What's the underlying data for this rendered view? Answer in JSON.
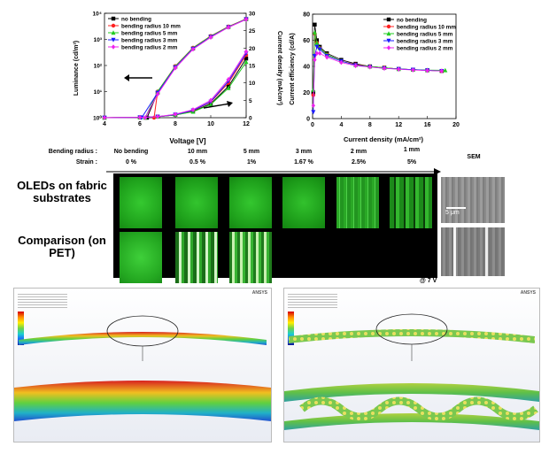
{
  "chart_data": [
    {
      "type": "line",
      "xlabel": "Voltage [V]",
      "ylabel": "Luminance (cd/m²)",
      "y2label": "Current density (mA/cm²)",
      "xlim": [
        4,
        12
      ],
      "xticks": [
        "4",
        "6",
        "8",
        "10",
        "12"
      ],
      "ylim_log": [
        1,
        10000
      ],
      "yticks": [
        "10⁰",
        "10¹",
        "10²",
        "10³",
        "10⁴"
      ],
      "y2lim": [
        0,
        30
      ],
      "y2ticks": [
        "0",
        "5",
        "10",
        "15",
        "20",
        "25",
        "30"
      ],
      "legend_position": "top-left",
      "series": [
        {
          "name": "no bending",
          "color": "#000000",
          "marker": "square",
          "luminance": [
            [
              6.4,
              1
            ],
            [
              7,
              9
            ],
            [
              8,
              90
            ],
            [
              9,
              450
            ],
            [
              10,
              1300
            ],
            [
              11,
              3000
            ],
            [
              12,
              6000
            ]
          ],
          "current_density": [
            [
              4,
              0
            ],
            [
              6,
              0.1
            ],
            [
              7,
              0.3
            ],
            [
              8,
              0.8
            ],
            [
              9,
              1.8
            ],
            [
              10,
              4
            ],
            [
              11,
              9
            ],
            [
              12,
              17
            ]
          ]
        },
        {
          "name": "bending radius 10 mm",
          "color": "#ff2020",
          "marker": "circle",
          "luminance": [
            [
              6.8,
              1
            ],
            [
              7,
              10
            ],
            [
              8,
              95
            ],
            [
              9,
              480
            ],
            [
              10,
              1350
            ],
            [
              11,
              3100
            ],
            [
              12,
              6100
            ]
          ],
          "current_density": [
            [
              4,
              0
            ],
            [
              6,
              0.1
            ],
            [
              7,
              0.3
            ],
            [
              8,
              0.8
            ],
            [
              9,
              2
            ],
            [
              10,
              4.5
            ],
            [
              11,
              10
            ],
            [
              12,
              18
            ]
          ]
        },
        {
          "name": "bending radius 5 mm",
          "color": "#22cc22",
          "marker": "triangle-up",
          "luminance": [
            [
              6.3,
              1
            ],
            [
              7,
              10
            ],
            [
              8,
              92
            ],
            [
              9,
              470
            ],
            [
              10,
              1320
            ],
            [
              11,
              3050
            ],
            [
              12,
              6050
            ]
          ],
          "current_density": [
            [
              4,
              0
            ],
            [
              6,
              0.1
            ],
            [
              7,
              0.3
            ],
            [
              8,
              0.8
            ],
            [
              9,
              1.7
            ],
            [
              10,
              3.8
            ],
            [
              11,
              8.5
            ],
            [
              12,
              16
            ]
          ]
        },
        {
          "name": "bending radius 3 mm",
          "color": "#1a1aff",
          "marker": "triangle-down",
          "luminance": [
            [
              6.1,
              1
            ],
            [
              7,
              9
            ],
            [
              8,
              85
            ],
            [
              9,
              440
            ],
            [
              10,
              1250
            ],
            [
              11,
              2950
            ],
            [
              12,
              5900
            ]
          ],
          "current_density": [
            [
              4,
              0
            ],
            [
              6,
              0.1
            ],
            [
              7,
              0.3
            ],
            [
              8,
              0.9
            ],
            [
              9,
              2.1
            ],
            [
              10,
              4.6
            ],
            [
              11,
              10.5
            ],
            [
              12,
              18.5
            ]
          ]
        },
        {
          "name": "bending radius 2 mm",
          "color": "#ee22ee",
          "marker": "diamond",
          "luminance": [
            [
              6.3,
              1
            ],
            [
              7,
              8
            ],
            [
              8,
              80
            ],
            [
              9,
              420
            ],
            [
              10,
              1200
            ],
            [
              11,
              2900
            ],
            [
              12,
              5800
            ]
          ],
          "current_density": [
            [
              4,
              0
            ],
            [
              6,
              0.1
            ],
            [
              7,
              0.3
            ],
            [
              8,
              1
            ],
            [
              9,
              2.3
            ],
            [
              10,
              5
            ],
            [
              11,
              11
            ],
            [
              12,
              19
            ]
          ]
        }
      ]
    },
    {
      "type": "scatter",
      "xlabel": "Current density (mA/cm²)",
      "ylabel": "Current efficiency (cd/A)",
      "xlim": [
        0,
        20
      ],
      "xticks": [
        "0",
        "4",
        "8",
        "12",
        "16",
        "20"
      ],
      "ylim": [
        0,
        80
      ],
      "yticks": [
        "0",
        "20",
        "40",
        "60",
        "80"
      ],
      "legend_position": "top-right",
      "series": [
        {
          "name": "no bending",
          "color": "#000000",
          "marker": "square",
          "points": [
            [
              0.1,
              20
            ],
            [
              0.3,
              72
            ],
            [
              0.6,
              60
            ],
            [
              1,
              55
            ],
            [
              2,
              50
            ],
            [
              4,
              45
            ],
            [
              6,
              42
            ],
            [
              8,
              40
            ],
            [
              10,
              39
            ],
            [
              12,
              38
            ],
            [
              14,
              37.5
            ],
            [
              16,
              37
            ],
            [
              18,
              36.5
            ]
          ]
        },
        {
          "name": "bending radius 10 mm",
          "color": "#ff2020",
          "marker": "circle",
          "points": [
            [
              0.1,
              18
            ],
            [
              0.3,
              65
            ],
            [
              0.6,
              58
            ],
            [
              1,
              54
            ],
            [
              2,
              49
            ],
            [
              4,
              44
            ],
            [
              6,
              41.5
            ],
            [
              8,
              40
            ],
            [
              10,
              39
            ],
            [
              12,
              38
            ],
            [
              14,
              37.5
            ],
            [
              16,
              37
            ],
            [
              18,
              36.5
            ]
          ]
        },
        {
          "name": "bending radius 5 mm",
          "color": "#22cc22",
          "marker": "triangle-up",
          "points": [
            [
              0.1,
              22
            ],
            [
              0.3,
              66
            ],
            [
              0.6,
              58
            ],
            [
              1,
              54
            ],
            [
              2,
              49
            ],
            [
              4,
              44
            ],
            [
              6,
              41
            ],
            [
              8,
              40
            ],
            [
              10,
              39
            ],
            [
              12,
              38
            ],
            [
              14,
              37.5
            ],
            [
              16,
              37.2
            ],
            [
              18.5,
              37
            ]
          ]
        },
        {
          "name": "bending radius 3 mm",
          "color": "#1a1aff",
          "marker": "triangle-down",
          "points": [
            [
              0.1,
              5
            ],
            [
              0.3,
              48
            ],
            [
              0.6,
              55
            ],
            [
              1,
              53
            ],
            [
              2,
              48
            ],
            [
              4,
              44
            ],
            [
              6,
              41
            ],
            [
              8,
              39.5
            ],
            [
              10,
              38.5
            ],
            [
              12,
              38
            ],
            [
              14,
              37.5
            ],
            [
              16,
              37
            ],
            [
              18,
              36.5
            ]
          ]
        },
        {
          "name": "bending radius 2 mm",
          "color": "#ee22ee",
          "marker": "diamond",
          "points": [
            [
              0.1,
              10
            ],
            [
              0.3,
              45
            ],
            [
              0.6,
              50
            ],
            [
              1,
              50
            ],
            [
              2,
              47
            ],
            [
              4,
              43
            ],
            [
              6,
              40.5
            ],
            [
              8,
              39.5
            ],
            [
              10,
              38.5
            ],
            [
              12,
              37.8
            ],
            [
              14,
              37.2
            ],
            [
              16,
              36.8
            ],
            [
              18,
              36.5
            ]
          ]
        }
      ]
    }
  ],
  "figure": {
    "header": {
      "bending_radius_label": "Bending radius :",
      "strain_label": "Strain :",
      "columns": [
        {
          "radius": "No bending",
          "strain": "0 %"
        },
        {
          "radius": "10 mm",
          "strain": "0.5 %"
        },
        {
          "radius": "5 mm",
          "strain": "1%"
        },
        {
          "radius": "3 mm",
          "strain": "1.67 %"
        },
        {
          "radius": "2 mm",
          "strain": "2.5%"
        },
        {
          "radius": "1 mm",
          "strain": "5%"
        }
      ],
      "sem_label": "SEM"
    },
    "row1_label": "OLEDs on fabric substrates",
    "row2_label": "Comparison (on PET)",
    "scale_bar": "5 μm",
    "voltage_note": "@ 7 V",
    "colors": {
      "emission": "#22b81e",
      "emission_dark": "#0c5a0a",
      "pet_bright": "#c8f0b0"
    },
    "ansys_brand": "ANSYS"
  }
}
